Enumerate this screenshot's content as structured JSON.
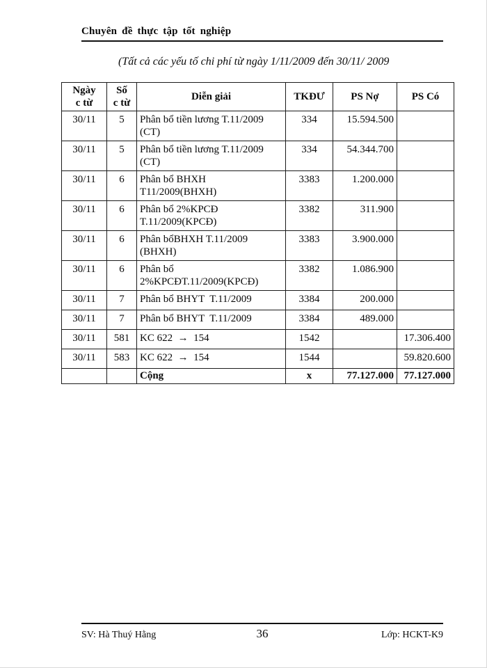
{
  "header": {
    "title": "Chuyên đề thực tập tốt nghiệp"
  },
  "subtitle": "(Tất cả các yếu tố chi phí từ ngày 1/11/2009 đến 30/11/ 2009",
  "table": {
    "columns": [
      {
        "line1": "Ngày",
        "line2": "c từ"
      },
      {
        "line1": "Số",
        "line2": "c từ"
      },
      {
        "line1": "Diễn giải",
        "line2": ""
      },
      {
        "line1": "TKĐƯ",
        "line2": ""
      },
      {
        "line1": "PS Nợ",
        "line2": ""
      },
      {
        "line1": "PS Có",
        "line2": ""
      }
    ],
    "rows": [
      {
        "date": "30/11",
        "no": "5",
        "desc": "Phân bổ tiền lương T.11/2009\n(CT)",
        "tk": "334",
        "debit": "15.594.500",
        "credit": ""
      },
      {
        "date": "30/11",
        "no": "5",
        "desc": "Phân bổ tiền lương T.11/2009\n(CT)",
        "tk": "334",
        "debit": "54.344.700",
        "credit": ""
      },
      {
        "date": "30/11",
        "no": "6",
        "desc": "Phân bổ BHXH\nT11/2009(BHXH)",
        "tk": "3383",
        "debit": "1.200.000",
        "credit": ""
      },
      {
        "date": "30/11",
        "no": "6",
        "desc": "Phân bổ 2%KPCĐ\nT.11/2009(KPCĐ)",
        "tk": "3382",
        "debit": "311.900",
        "credit": ""
      },
      {
        "date": "30/11",
        "no": "6",
        "desc": "Phân bổBHXH T.11/2009\n(BHXH)",
        "tk": "3383",
        "debit": "3.900.000",
        "credit": ""
      },
      {
        "date": "30/11",
        "no": "6",
        "desc": "Phân bổ\n2%KPCĐT.11/2009(KPCĐ)",
        "tk": "3382",
        "debit": "1.086.900",
        "credit": ""
      },
      {
        "date": "30/11",
        "no": "7",
        "desc": "Phân bổ BHYT  T.11/2009",
        "tk": "3384",
        "debit": "200.000",
        "credit": ""
      },
      {
        "date": "30/11",
        "no": "7",
        "desc": "Phân bổ BHYT  T.11/2009",
        "tk": "3384",
        "debit": "489.000",
        "credit": ""
      },
      {
        "date": "30/11",
        "no": "581",
        "desc": "KC 622  →  154",
        "tk": "1542",
        "debit": "",
        "credit": "17.306.400"
      },
      {
        "date": "30/11",
        "no": "583",
        "desc": "KC 622  →  154",
        "tk": "1544",
        "debit": "",
        "credit": "59.820.600"
      }
    ],
    "total": {
      "label": "Cộng",
      "tk": "x",
      "debit": "77.127.000",
      "credit": "77.127.000"
    }
  },
  "footer": {
    "left": "SV: Hà Thuý Hằng",
    "page_number": "36",
    "right": "Lớp: HCKT-K9"
  }
}
